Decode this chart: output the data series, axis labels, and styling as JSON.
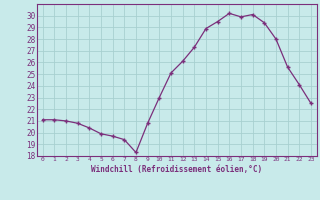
{
  "x": [
    0,
    1,
    2,
    3,
    4,
    5,
    6,
    7,
    8,
    9,
    10,
    11,
    12,
    13,
    14,
    15,
    16,
    17,
    18,
    19,
    20,
    21,
    22,
    23
  ],
  "y": [
    21.1,
    21.1,
    21.0,
    20.8,
    20.4,
    19.9,
    19.7,
    19.4,
    18.3,
    20.8,
    23.0,
    25.1,
    26.1,
    27.3,
    28.9,
    29.5,
    30.2,
    29.9,
    30.1,
    29.4,
    28.0,
    25.6,
    24.1,
    22.5
  ],
  "line_color": "#7b2f7b",
  "marker": "+",
  "background_color": "#c8eaea",
  "grid_color": "#a8d0d0",
  "xlabel": "Windchill (Refroidissement éolien,°C)",
  "ylim": [
    18,
    31
  ],
  "xlim": [
    -0.5,
    23.5
  ],
  "yticks": [
    18,
    19,
    20,
    21,
    22,
    23,
    24,
    25,
    26,
    27,
    28,
    29,
    30
  ],
  "xticks": [
    0,
    1,
    2,
    3,
    4,
    5,
    6,
    7,
    8,
    9,
    10,
    11,
    12,
    13,
    14,
    15,
    16,
    17,
    18,
    19,
    20,
    21,
    22,
    23
  ],
  "tick_color": "#7b2f7b",
  "label_color": "#7b2f7b",
  "font_family": "monospace"
}
